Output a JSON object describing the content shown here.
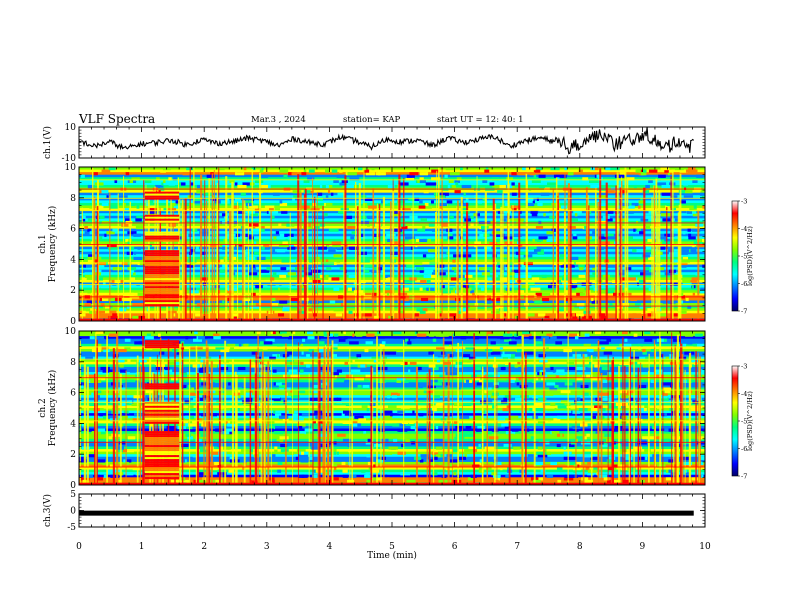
{
  "header": {
    "title": "VLF Spectra",
    "date": "Mar.3 , 2024",
    "station": "station= KAP",
    "start": "start UT =  12: 40: 1"
  },
  "colorbar": {
    "label": "log(PSD)(V^2/Hz)",
    "ticks": [
      "-3",
      "-4",
      "-5",
      "-6",
      "-7"
    ],
    "colors": [
      "#000066",
      "#0000ff",
      "#0080ff",
      "#00ffff",
      "#00ff80",
      "#80ff00",
      "#ffff00",
      "#ff8000",
      "#ff0000",
      "#ffffff"
    ]
  },
  "chart_data": [
    {
      "type": "line",
      "ylabel": "ch.1(V)",
      "ylim": [
        -10,
        10
      ],
      "yticks": [
        "10",
        "-10"
      ],
      "xlim": [
        0,
        10
      ],
      "series": [
        {
          "values": [
            1.0,
            -2.5,
            0.5,
            -4.0,
            -1.0,
            0.0,
            1.5,
            -1.5,
            2.0,
            -0.5,
            0.5,
            3.0,
            1.0,
            -2.0,
            2.5,
            0.0,
            -1.0,
            3.5,
            1.0,
            -3.0,
            2.0,
            0.5,
            1.5,
            -2.0,
            3.0,
            0.0,
            2.0,
            4.0,
            -2.5,
            1.0,
            3.0,
            0.5,
            -3.5,
            2.5,
            4.5,
            -1.0,
            2.0,
            5.0,
            -4.0,
            1.0,
            -2.0
          ]
        }
      ]
    },
    {
      "type": "heatmap",
      "xlabel": "",
      "ylabel": "ch.1\nFrequency (kHz)",
      "ylim": [
        0,
        10
      ],
      "yticks": [
        "0",
        "2",
        "4",
        "6",
        "8",
        "10"
      ],
      "xlim": [
        0,
        10
      ],
      "zlim": [
        -7,
        -3
      ]
    },
    {
      "type": "heatmap",
      "xlabel": "",
      "ylabel": "ch.2\nFrequency (kHz)",
      "ylim": [
        0,
        10
      ],
      "yticks": [
        "0",
        "2",
        "4",
        "6",
        "8",
        "10"
      ],
      "xlim": [
        0,
        10
      ],
      "zlim": [
        -7,
        -3
      ]
    },
    {
      "type": "line",
      "ylabel": "ch.3(V)",
      "ylim": [
        -5,
        5
      ],
      "yticks": [
        "5",
        "0",
        "-5"
      ],
      "xlim": [
        0,
        10
      ],
      "xlabel": "Time  (min)",
      "xticks": [
        "0",
        "1",
        "2",
        "3",
        "4",
        "5",
        "6",
        "7",
        "8",
        "9",
        "10"
      ],
      "series": [
        {
          "values": [
            -0.8,
            -0.8
          ]
        }
      ]
    }
  ]
}
